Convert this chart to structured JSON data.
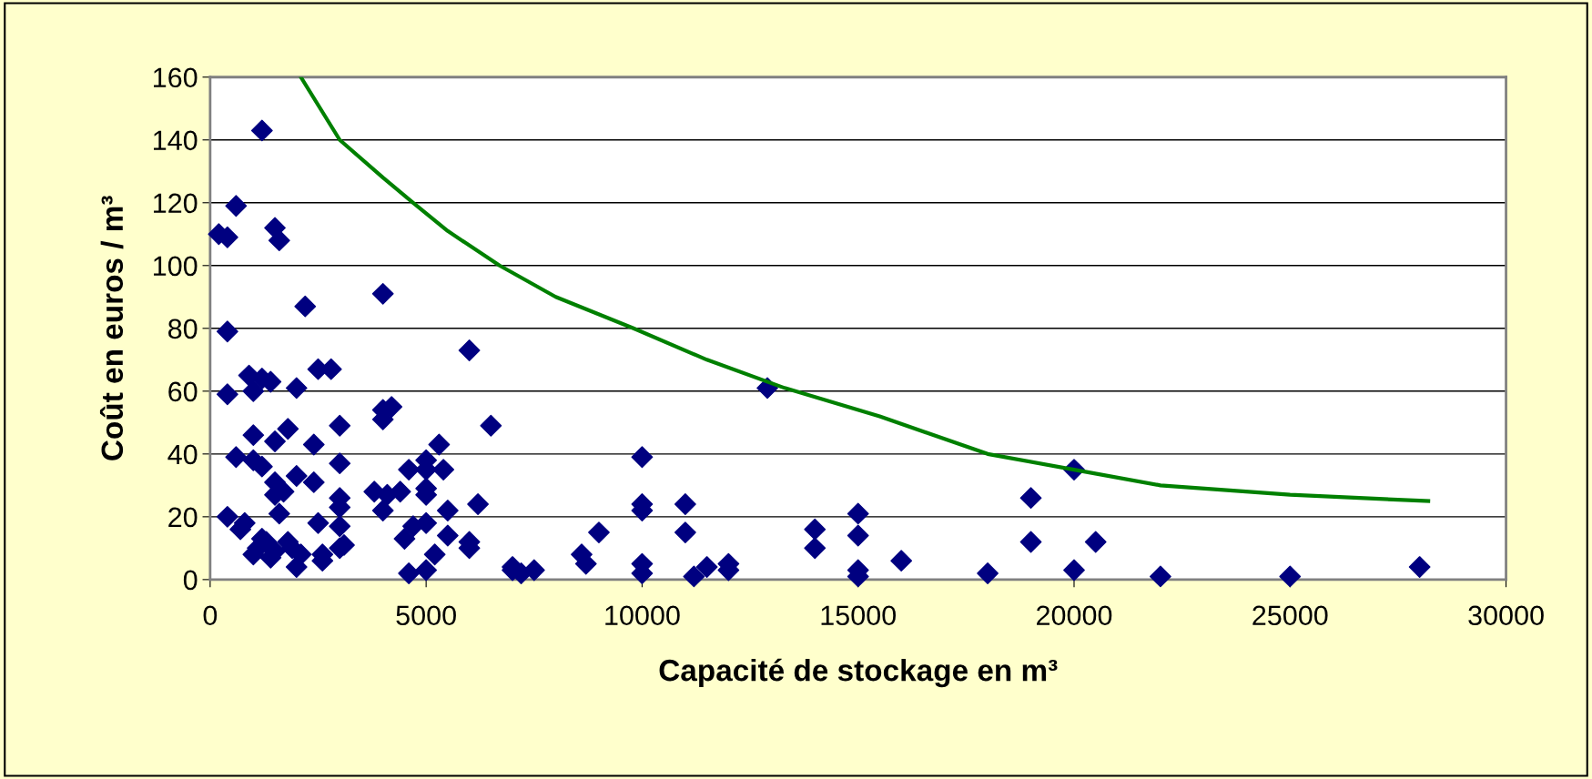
{
  "chart_data": {
    "type": "scatter",
    "xlabel": "Capacité de stockage en m³",
    "ylabel": "Coût en euros / m³",
    "xlim": [
      0,
      30000
    ],
    "ylim": [
      0,
      160
    ],
    "xticks": [
      0,
      5000,
      10000,
      15000,
      20000,
      25000,
      30000
    ],
    "yticks": [
      0,
      20,
      40,
      60,
      80,
      100,
      120,
      140,
      160
    ],
    "grid": "y",
    "marker": "diamond",
    "series": [
      {
        "color": "#000080",
        "x": [
          200,
          400,
          600,
          400,
          400,
          400,
          600,
          700,
          800,
          900,
          1000,
          1000,
          1000,
          1000,
          1100,
          1200,
          1200,
          1200,
          1200,
          1300,
          1400,
          1400,
          1500,
          1500,
          1500,
          1500,
          1500,
          1600,
          1600,
          1700,
          1800,
          1800,
          1900,
          2000,
          2000,
          2000,
          2100,
          2200,
          2400,
          2400,
          2500,
          2500,
          2600,
          2600,
          2800,
          3000,
          3000,
          3000,
          3000,
          3000,
          3000,
          3100,
          3800,
          4000,
          4000,
          4000,
          4000,
          4100,
          4200,
          4400,
          4500,
          4600,
          4600,
          4700,
          5000,
          5000,
          5000,
          5000,
          5000,
          5000,
          5200,
          5300,
          5400,
          5500,
          5500,
          6000,
          6000,
          6000,
          6200,
          6500,
          7000,
          7000,
          7200,
          7500,
          8600,
          8700,
          9000,
          10000,
          10000,
          10000,
          10000,
          10000,
          11000,
          11000,
          11200,
          11500,
          12000,
          12000,
          12900,
          14000,
          14000,
          15000,
          15000,
          15000,
          15000,
          16000,
          18000,
          19000,
          19000,
          20000,
          20000,
          20500,
          22000,
          25000,
          28000
        ],
        "values": [
          110,
          109,
          119,
          79,
          59,
          20,
          39,
          16,
          18,
          65,
          60,
          46,
          38,
          8,
          10,
          143,
          64,
          36,
          13,
          12,
          63,
          7,
          112,
          44,
          31,
          27,
          9,
          108,
          21,
          28,
          48,
          12,
          10,
          61,
          33,
          4,
          8,
          87,
          43,
          31,
          67,
          18,
          6,
          8,
          67,
          49,
          37,
          26,
          23,
          17,
          10,
          11,
          28,
          91,
          54,
          51,
          22,
          27,
          55,
          28,
          13,
          35,
          2,
          17,
          38,
          35,
          29,
          27,
          18,
          3,
          8,
          43,
          35,
          22,
          14,
          73,
          12,
          10,
          24,
          49,
          4,
          3,
          2,
          3,
          8,
          5,
          15,
          39,
          24,
          22,
          5,
          2,
          24,
          15,
          1,
          4,
          5,
          3,
          61,
          16,
          10,
          21,
          14,
          3,
          1,
          6,
          2,
          26,
          12,
          35,
          3,
          12,
          1,
          1,
          4
        ]
      },
      {
        "type": "line",
        "color": "#008000",
        "marker": "none",
        "line_style": "solid",
        "x": [
          2100,
          3000,
          4000,
          4700,
          5500,
          6700,
          8000,
          9800,
          11500,
          13300,
          15500,
          18000,
          20000,
          22000,
          25000,
          28200
        ],
        "values": [
          160,
          140,
          128,
          120,
          111,
          100,
          90,
          80,
          70,
          61,
          52,
          40,
          35,
          30,
          27,
          25
        ]
      }
    ]
  }
}
